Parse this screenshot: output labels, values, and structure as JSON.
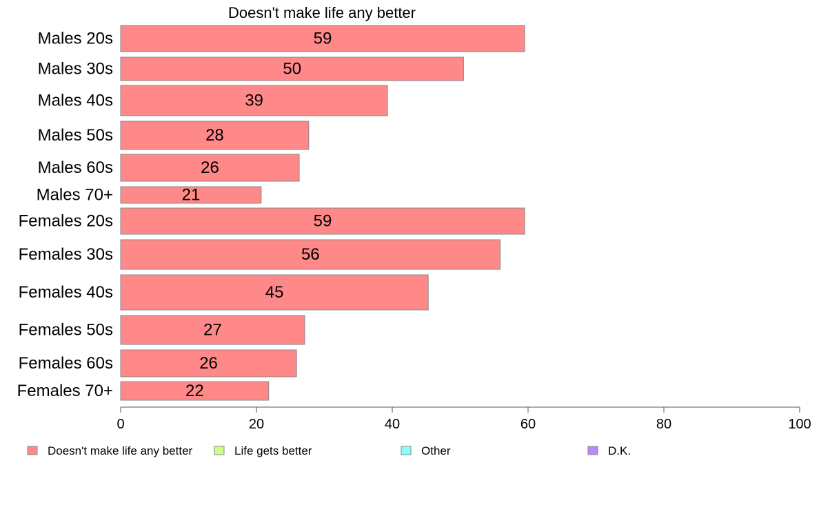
{
  "chart_data": {
    "type": "bar",
    "orientation": "horizontal",
    "title": "Doesn't make life any better",
    "categories": [
      "Males 20s",
      "Males 30s",
      "Males 40s",
      "Males 50s",
      "Males 60s",
      "Males 70+",
      "Females 20s",
      "Females 30s",
      "Females 40s",
      "Females 50s",
      "Females 60s",
      "Females 70+"
    ],
    "series": [
      {
        "name": "Doesn't make life any better",
        "color": "#ff8888",
        "values": [
          59.5,
          50.5,
          39.3,
          27.7,
          26.3,
          20.7,
          59.5,
          55.9,
          45.3,
          27.1,
          25.9,
          21.8
        ]
      }
    ],
    "data_labels": [
      "59",
      "50",
      "39",
      "28",
      "26",
      "21",
      "59",
      "56",
      "45",
      "27",
      "26",
      "22"
    ],
    "xlim": [
      0,
      100
    ],
    "x_ticks": [
      0,
      20,
      40,
      60,
      80,
      100
    ],
    "grid": false,
    "legend": {
      "position": "bottom",
      "entries": [
        {
          "label": "Doesn't make life any better",
          "color": "#ff8888"
        },
        {
          "label": "Life gets better",
          "color": "#ccff88"
        },
        {
          "label": "Other",
          "color": "#88ffff"
        },
        {
          "label": "D.K.",
          "color": "#bb88ff"
        }
      ]
    }
  }
}
